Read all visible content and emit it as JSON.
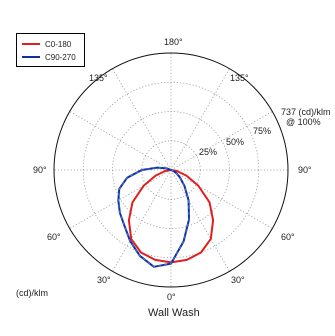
{
  "chart_data": {
    "type": "polar-line",
    "title": "Wall Wash",
    "unit_label": "(cd)/klm",
    "max_label": "737 (cd)/klm",
    "max_sublabel": "@ 100%",
    "max_value": 737,
    "radial_ticks": [
      "25%",
      "50%",
      "75%"
    ],
    "angle_labels": {
      "top": "180°",
      "upper_left": "135°",
      "upper_right": "135°",
      "left": "90°",
      "right": "90°",
      "lower_left_60": "60°",
      "lower_right_60": "60°",
      "lower_left_30": "30°",
      "lower_right_30": "30°",
      "bottom": "0°"
    },
    "grid": true,
    "legend_position": "top-left",
    "series": [
      {
        "name": "C0-180",
        "color": "#e02020",
        "angles_deg": [
          0,
          10,
          20,
          30,
          40,
          50,
          60,
          70,
          80,
          90
        ],
        "right_percent": [
          79,
          78,
          75,
          68,
          56,
          43,
          27,
          14,
          5,
          0
        ],
        "left_percent": [
          79,
          78,
          75,
          68,
          56,
          43,
          27,
          14,
          5,
          0
        ]
      },
      {
        "name": "C90-270",
        "color": "#1030a0",
        "angles_deg": [
          0,
          10,
          20,
          30,
          40,
          50,
          60,
          70,
          80,
          90,
          100,
          110
        ],
        "right_percent": [
          80,
          62,
          45,
          30,
          18,
          10,
          5,
          2,
          0,
          0,
          0,
          0
        ],
        "left_percent": [
          80,
          84,
          78,
          70,
          62,
          57,
          52,
          47,
          38,
          25,
          12,
          4
        ]
      }
    ]
  }
}
